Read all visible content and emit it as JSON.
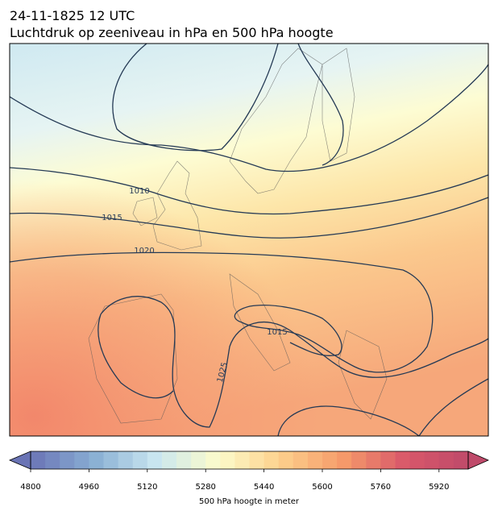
{
  "header": {
    "title": "24-11-1825 12 UTC",
    "subtitle": "Luchtdruk op zeeniveau in hPa en 500 hPa hoogte"
  },
  "map": {
    "isobar_labels": [
      "1010",
      "1015",
      "1020",
      "1015",
      "1025"
    ]
  },
  "colorbar": {
    "label": "500 hPa hoogte in meter",
    "lim": [
      4800,
      6000
    ],
    "step": 40,
    "ticks": [
      4800,
      4960,
      5120,
      5280,
      5440,
      5600,
      5760,
      5920
    ],
    "extend": "both",
    "colormap": [
      "#6a74b5",
      "#88aed3",
      "#c9e6f0",
      "#fcfccb",
      "#fdd08c",
      "#f59a6a",
      "#d9586a",
      "#bf4a6a"
    ]
  }
}
